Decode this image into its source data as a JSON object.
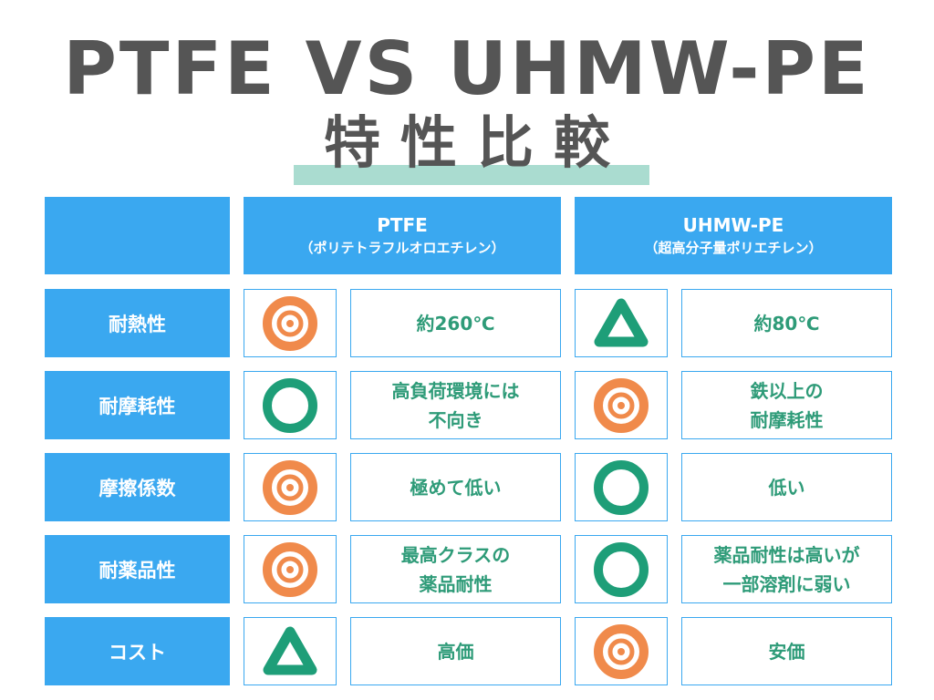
{
  "title_line1": "PTFE VS UHMW-PE",
  "title_line2": "特性比較",
  "colors": {
    "header_blue": "#3aa8f0",
    "text_green": "#2e9b78",
    "mark_orange": "#f08a4b",
    "mark_green": "#1e9e78",
    "title_gray": "#555555",
    "highlight": "#aadcd0"
  },
  "headers": {
    "ptfe": {
      "name": "PTFE",
      "sub": "（ポリテトラフルオロエチレン）"
    },
    "uhmw": {
      "name": "UHMW-PE",
      "sub": "（超高分子量ポリエチレン）"
    }
  },
  "rows": [
    {
      "label": "耐熱性",
      "ptfe_mark": "double-circle",
      "ptfe_text": "約260℃",
      "uhmw_mark": "triangle",
      "uhmw_text": "約80℃"
    },
    {
      "label": "耐摩耗性",
      "ptfe_mark": "circle",
      "ptfe_text": "高負荷環境には\n不向き",
      "uhmw_mark": "double-circle",
      "uhmw_text": "鉄以上の\n耐摩耗性"
    },
    {
      "label": "摩擦係数",
      "ptfe_mark": "double-circle",
      "ptfe_text": "極めて低い",
      "uhmw_mark": "circle",
      "uhmw_text": "低い"
    },
    {
      "label": "耐薬品性",
      "ptfe_mark": "double-circle",
      "ptfe_text": "最高クラスの\n薬品耐性",
      "uhmw_mark": "circle",
      "uhmw_text": "薬品耐性は高いが\n一部溶剤に弱い"
    },
    {
      "label": "コスト",
      "ptfe_mark": "triangle",
      "ptfe_text": "高価",
      "uhmw_mark": "double-circle",
      "uhmw_text": "安価"
    }
  ]
}
